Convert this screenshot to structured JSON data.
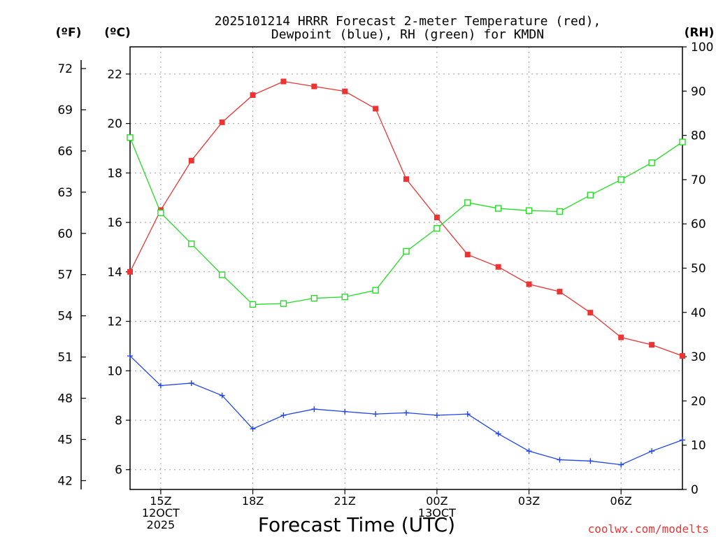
{
  "chart_data": {
    "type": "line",
    "title": [
      "2025101214 HRRR Forecast 2-meter Temperature (red),",
      "Dewpoint (blue), RH (green) for KMDN"
    ],
    "xlabel": "Forecast Time (UTC)",
    "credit": "coolwx.com/modelts",
    "units": {
      "fahrenheit": "(ºF)",
      "celsius": "(ºC)",
      "rh": "(RH)"
    },
    "x_hours": [
      14,
      15,
      16,
      17,
      18,
      19,
      20,
      21,
      22,
      23,
      24,
      25,
      26,
      27,
      28,
      29,
      30,
      31,
      32
    ],
    "xlim": [
      14,
      32
    ],
    "x_ticks": [
      {
        "hour": 15,
        "lines": [
          "15Z",
          "12OCT",
          "2025"
        ]
      },
      {
        "hour": 18,
        "lines": [
          "18Z"
        ]
      },
      {
        "hour": 21,
        "lines": [
          "21Z"
        ]
      },
      {
        "hour": 24,
        "lines": [
          "00Z",
          "13OCT"
        ]
      },
      {
        "hour": 27,
        "lines": [
          "03Z"
        ]
      },
      {
        "hour": 30,
        "lines": [
          "06Z"
        ]
      }
    ],
    "celsius_axis": {
      "ylim": [
        5.2,
        23.1
      ],
      "ticks": [
        "6",
        "8",
        "10",
        "12",
        "14",
        "16",
        "18",
        "20",
        "22"
      ]
    },
    "fahrenheit_axis": {
      "ticks": [
        "42",
        "45",
        "48",
        "51",
        "54",
        "57",
        "60",
        "63",
        "66",
        "69",
        "72"
      ]
    },
    "rh_axis": {
      "ylim": [
        0,
        100
      ],
      "ticks": [
        "0",
        "10",
        "20",
        "30",
        "40",
        "50",
        "60",
        "70",
        "80",
        "90",
        "100"
      ]
    },
    "series": [
      {
        "name": "2-meter Temperature",
        "axis": "celsius",
        "color": "#ee3333",
        "marker": "filled-square",
        "values": [
          14.0,
          16.5,
          18.5,
          20.05,
          21.15,
          21.7,
          21.5,
          21.3,
          20.6,
          17.75,
          16.2,
          14.7,
          14.2,
          13.5,
          13.2,
          12.35,
          11.35,
          11.05,
          10.6
        ]
      },
      {
        "name": "Dewpoint",
        "axis": "celsius",
        "color": "#2244ee",
        "marker": "plus",
        "values": [
          10.6,
          9.4,
          9.5,
          9.0,
          7.65,
          8.2,
          8.45,
          8.35,
          8.25,
          8.3,
          8.2,
          8.25,
          7.45,
          6.75,
          6.4,
          6.35,
          6.2,
          6.75,
          7.2
        ]
      },
      {
        "name": "RH",
        "axis": "rh",
        "color": "#22dd22",
        "marker": "open-square",
        "values": [
          79.5,
          62.5,
          55.5,
          48.5,
          41.8,
          42.0,
          43.2,
          43.5,
          45.0,
          53.8,
          59.0,
          64.8,
          63.5,
          63.0,
          62.8,
          66.5,
          70.0,
          73.8,
          78.5
        ]
      }
    ]
  }
}
